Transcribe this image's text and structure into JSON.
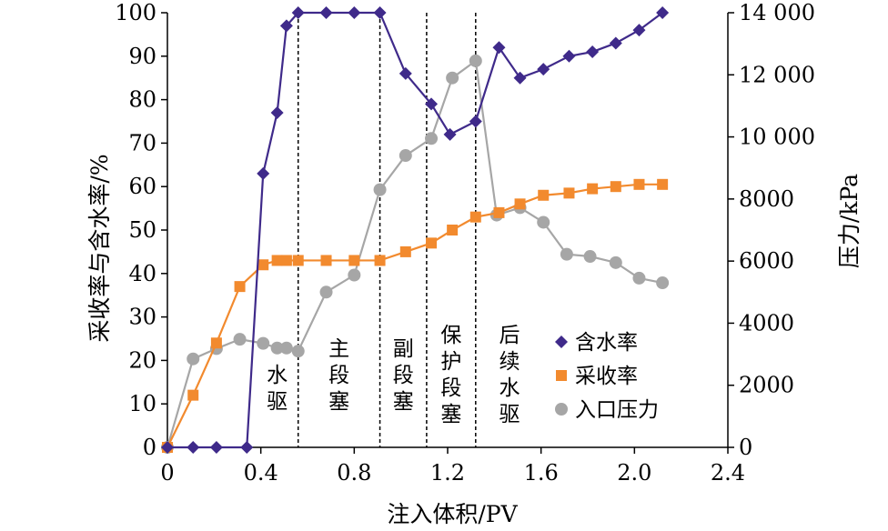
{
  "chart_data": {
    "type": "line",
    "xlabel": "注入体积/PV",
    "ylabel_left": "采收率与含水率/%",
    "ylabel_right": "压力/kPa",
    "xlim": [
      0,
      2.4
    ],
    "ylim_left": [
      0,
      100
    ],
    "ylim_right": [
      0,
      14000
    ],
    "x_ticks": [
      "0",
      "0.4",
      "0.8",
      "1.2",
      "1.6",
      "2.0",
      "2.4"
    ],
    "x_tick_values": [
      0,
      0.4,
      0.8,
      1.2,
      1.6,
      2.0,
      2.4
    ],
    "y_left_ticks": [
      "0",
      "10",
      "20",
      "30",
      "40",
      "50",
      "60",
      "70",
      "80",
      "90",
      "100"
    ],
    "y_left_tick_values": [
      0,
      10,
      20,
      30,
      40,
      50,
      60,
      70,
      80,
      90,
      100
    ],
    "y_right_ticks": [
      "0",
      "2000",
      "4000",
      "6000",
      "8000",
      "10 000",
      "12 000",
      "14 000"
    ],
    "y_right_tick_values": [
      0,
      2000,
      4000,
      6000,
      8000,
      10000,
      12000,
      14000
    ],
    "legend_position": "right",
    "grid": false,
    "series": [
      {
        "name": "含水率",
        "axis": "left",
        "color": "#3f2a8a",
        "marker": "diamond",
        "x": [
          0,
          0.11,
          0.21,
          0.34,
          0.41,
          0.47,
          0.51,
          0.56,
          0.68,
          0.8,
          0.91,
          1.02,
          1.13,
          1.21,
          1.32,
          1.42,
          1.51,
          1.61,
          1.72,
          1.82,
          1.92,
          2.02,
          2.12
        ],
        "y": [
          0,
          0,
          0,
          0,
          63,
          77,
          97,
          100,
          100,
          100,
          100,
          86,
          79,
          72,
          75,
          92,
          85,
          87,
          90,
          91,
          93,
          96,
          100
        ]
      },
      {
        "name": "采收率",
        "axis": "left",
        "color": "#f28a2e",
        "marker": "square",
        "x": [
          0,
          0.11,
          0.21,
          0.31,
          0.41,
          0.47,
          0.51,
          0.56,
          0.68,
          0.8,
          0.91,
          1.02,
          1.13,
          1.22,
          1.32,
          1.42,
          1.51,
          1.61,
          1.72,
          1.82,
          1.92,
          2.02,
          2.12
        ],
        "y": [
          0,
          12,
          24,
          37,
          42,
          43,
          43,
          43,
          43,
          43,
          43,
          45,
          47,
          50,
          53,
          54,
          56,
          58,
          58.5,
          59.5,
          60,
          60.5,
          60.5
        ]
      },
      {
        "name": "入口压力",
        "axis": "right",
        "color": "#a6a6a6",
        "marker": "circle",
        "x": [
          0,
          0.11,
          0.21,
          0.31,
          0.41,
          0.47,
          0.51,
          0.56,
          0.68,
          0.8,
          0.91,
          1.02,
          1.13,
          1.22,
          1.32,
          1.41,
          1.51,
          1.61,
          1.71,
          1.81,
          1.92,
          2.02,
          2.12
        ],
        "y": [
          0,
          2850,
          3180,
          3480,
          3350,
          3200,
          3200,
          3100,
          5000,
          5550,
          8300,
          9400,
          9950,
          11900,
          12450,
          7480,
          7720,
          7250,
          6220,
          6150,
          5950,
          5450,
          5300
        ]
      }
    ],
    "dividers_x": [
      0.56,
      0.91,
      1.11,
      1.32
    ],
    "regions": [
      {
        "lines": [
          "水",
          "驱"
        ],
        "x": 0.47
      },
      {
        "lines": [
          "主",
          "段",
          "塞"
        ],
        "x": 0.735
      },
      {
        "lines": [
          "副",
          "段",
          "塞"
        ],
        "x": 1.01
      },
      {
        "lines": [
          "保",
          "护",
          "段",
          "塞"
        ],
        "x": 1.215
      },
      {
        "lines": [
          "后",
          "续",
          "水",
          "驱"
        ],
        "x": 1.465
      }
    ]
  }
}
